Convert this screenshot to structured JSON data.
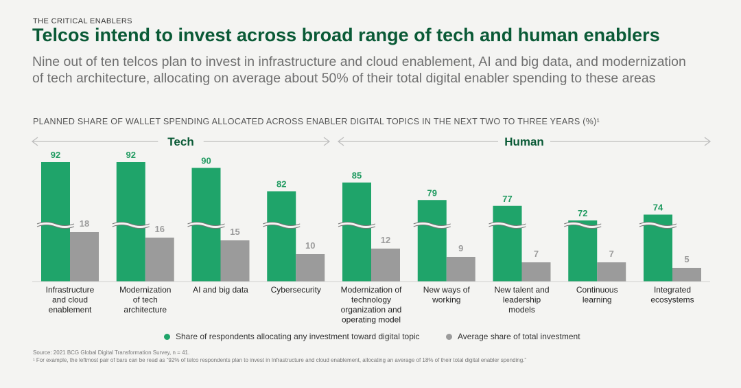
{
  "header": {
    "eyebrow": "THE CRITICAL ENABLERS",
    "title": "Telcos intend to invest across broad range of tech and human enablers",
    "subtitle": "Nine out of ten telcos plan to invest in infrastructure and cloud enablement, AI and big data, and modernization of tech architecture, allocating on average about 50% of their total digital enabler spending to these areas"
  },
  "chart_title": "PLANNED SHARE OF WALLET SPENDING ALLOCATED ACROSS ENABLER DIGITAL TOPICS IN THE NEXT TWO TO THREE YEARS (%)¹",
  "colors": {
    "green": "#1fa46a",
    "gray": "#9b9b9b",
    "green_label": "#1f9a60",
    "gray_label": "#9b9b9b"
  },
  "chart_data": {
    "type": "bar",
    "groups": [
      {
        "label": "Tech",
        "categories": [
          0,
          1,
          2,
          3
        ]
      },
      {
        "label": "Human",
        "categories": [
          4,
          5,
          6,
          7,
          8
        ]
      }
    ],
    "categories": [
      [
        "Infrastructure",
        "and cloud",
        "enablement"
      ],
      [
        "Modernization",
        "of tech",
        "architecture"
      ],
      [
        "AI and big data"
      ],
      [
        "Cybersecurity"
      ],
      [
        "Modernization of",
        "technology",
        "organization and",
        "operating model"
      ],
      [
        "New ways of",
        "working"
      ],
      [
        "New talent and",
        "leadership",
        "models"
      ],
      [
        "Continuous",
        "learning"
      ],
      [
        "Integrated",
        "ecosystems"
      ]
    ],
    "series": [
      {
        "name": "Share of respondents allocating any investment toward digital topic",
        "values": [
          92,
          92,
          90,
          82,
          85,
          79,
          77,
          72,
          74
        ]
      },
      {
        "name": "Average share of total investment",
        "values": [
          18,
          16,
          15,
          10,
          12,
          9,
          7,
          7,
          5
        ]
      }
    ],
    "axis_break": true
  },
  "source": "Source: 2021 BCG Global Digital Transformation Survey, n = 41.",
  "footnote": "¹ For example, the leftmost pair of bars can be read as “92% of telco respondents plan to invest in Infrastructure and cloud enablement, allocating an average of 18% of their total digital enabler spending.”"
}
